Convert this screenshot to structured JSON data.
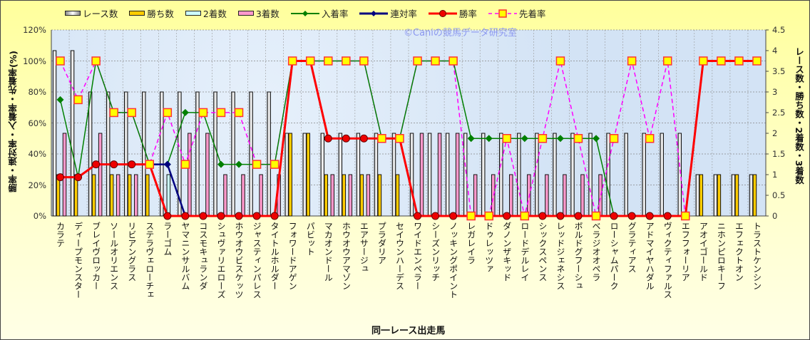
{
  "chart_data": {
    "type": "bar+line",
    "title": "",
    "watermark": "©Caniの競馬データ研究室",
    "xlabel": "同一レース出走馬",
    "ylabel": "勝率・連対率・入着率・先着率(%)",
    "y2label": "レース数・勝ち数・2着数・3着数",
    "ylim": [
      0,
      120
    ],
    "y2lim": [
      0,
      4.5
    ],
    "yticks": [
      "0%",
      "20%",
      "40%",
      "60%",
      "80%",
      "100%",
      "120%"
    ],
    "y2ticks": [
      "0",
      "0.5",
      "1",
      "1.5",
      "2",
      "2.5",
      "3",
      "3.5",
      "4",
      "4.5"
    ],
    "grid": true,
    "legend_position": "top",
    "categories": [
      "カラテ",
      "ディープモンスター",
      "ブレイヴロッカー",
      "ソールオリエンス",
      "リビアングラス",
      "ステラヴェローチェ",
      "ラーゴム",
      "ヤマニンサルバム",
      "コスモキュランダ",
      "シュヴァリエローズ",
      "ホウオウビスケッツ",
      "ジャスティンパレス",
      "タイトルホルダー",
      "フォワードアゲン",
      "パビット",
      "マカオンドール",
      "ホウオウアマゾン",
      "エアサージュ",
      "プラダリア",
      "セイウンハーデス",
      "ワイドエンペラー",
      "シーズンリッチ",
      "ノッキングポイント",
      "レガレイラ",
      "ドゥレッツァ",
      "ダノンザキッド",
      "ロードデルレイ",
      "シックスペンス",
      "レッドジェネシス",
      "ボルドグフーシュ",
      "ベラジオオペラ",
      "ローシャムパーク",
      "グラティアス",
      "アドマイヤハダル",
      "ヴィクティファルス",
      "エフフォーリア",
      "アオイゴールド",
      "ニホンピロキーフ",
      "エフェクトオン",
      "トラストケンシン"
    ],
    "bar_series": [
      {
        "name": "レース数",
        "axis": "right",
        "color": "#f4f4f4",
        "values": [
          4,
          4,
          3,
          3,
          3,
          3,
          3,
          3,
          3,
          3,
          3,
          3,
          3,
          2,
          2,
          2,
          2,
          2,
          2,
          2,
          2,
          2,
          2,
          2,
          2,
          2,
          2,
          2,
          2,
          2,
          2,
          2,
          2,
          2,
          2,
          2,
          1,
          1,
          1,
          1
        ]
      },
      {
        "name": "勝ち数",
        "axis": "right",
        "color": "#ffcc00",
        "values": [
          1,
          1,
          1,
          1,
          1,
          1,
          0,
          0,
          0,
          0,
          0,
          0,
          0,
          2,
          2,
          1,
          1,
          1,
          1,
          1,
          0,
          0,
          0,
          0,
          0,
          0,
          0,
          0,
          0,
          0,
          0,
          0,
          0,
          0,
          0,
          0,
          1,
          1,
          1,
          1
        ]
      },
      {
        "name": "2着数",
        "axis": "right",
        "color": "#ccffff",
        "values": [
          0,
          0,
          0,
          0,
          0,
          0,
          1,
          0,
          0,
          0,
          0,
          0,
          0,
          0,
          0,
          0,
          0,
          0,
          0,
          0,
          0,
          0,
          0,
          0,
          0,
          0,
          0,
          0,
          0,
          0,
          0,
          0,
          0,
          0,
          0,
          0,
          0,
          0,
          0,
          0
        ]
      },
      {
        "name": "3着数",
        "axis": "right",
        "color": "#ff99cc",
        "values": [
          2,
          0,
          2,
          1,
          1,
          0,
          0,
          2,
          2,
          1,
          1,
          1,
          1,
          0,
          0,
          1,
          1,
          1,
          0,
          0,
          2,
          2,
          2,
          1,
          1,
          1,
          1,
          1,
          1,
          1,
          1,
          0,
          0,
          0,
          0,
          0,
          0,
          0,
          0,
          0
        ]
      }
    ],
    "line_series": [
      {
        "name": "入着率",
        "axis": "left",
        "color": "#008000",
        "marker": "diamond",
        "values": [
          75,
          25,
          100,
          66.7,
          66.7,
          33.3,
          33.3,
          66.7,
          66.7,
          33.3,
          33.3,
          33.3,
          33.3,
          100,
          100,
          100,
          100,
          100,
          50,
          50,
          100,
          100,
          100,
          50,
          50,
          50,
          50,
          50,
          50,
          50,
          50,
          0,
          0,
          0,
          0,
          0,
          100,
          100,
          100,
          100
        ]
      },
      {
        "name": "連対率",
        "axis": "left",
        "color": "#000080",
        "marker": "diamond",
        "values": [
          25,
          25,
          33.3,
          33.3,
          33.3,
          33.3,
          33.3,
          0,
          0,
          0,
          0,
          0,
          0,
          100,
          100,
          50,
          50,
          50,
          50,
          50,
          0,
          0,
          0,
          0,
          0,
          0,
          0,
          0,
          0,
          0,
          0,
          0,
          0,
          0,
          0,
          0,
          100,
          100,
          100,
          100
        ]
      },
      {
        "name": "勝率",
        "axis": "left",
        "color": "#ff0000",
        "marker": "circle",
        "values": [
          25,
          25,
          33.3,
          33.3,
          33.3,
          33.3,
          0,
          0,
          0,
          0,
          0,
          0,
          0,
          100,
          100,
          50,
          50,
          50,
          50,
          50,
          0,
          0,
          0,
          0,
          0,
          0,
          0,
          0,
          0,
          0,
          0,
          0,
          0,
          0,
          0,
          0,
          100,
          100,
          100,
          100
        ]
      },
      {
        "name": "先着率",
        "axis": "left",
        "color": "#ff00ff",
        "marker": "square",
        "values": [
          100,
          75,
          100,
          66.7,
          66.7,
          33.3,
          66.7,
          33.3,
          66.7,
          66.7,
          66.7,
          33.3,
          33.3,
          100,
          100,
          100,
          100,
          100,
          50,
          50,
          100,
          100,
          100,
          0,
          0,
          50,
          0,
          50,
          100,
          50,
          0,
          50,
          100,
          50,
          100,
          0,
          100,
          100,
          100,
          100
        ]
      }
    ]
  }
}
